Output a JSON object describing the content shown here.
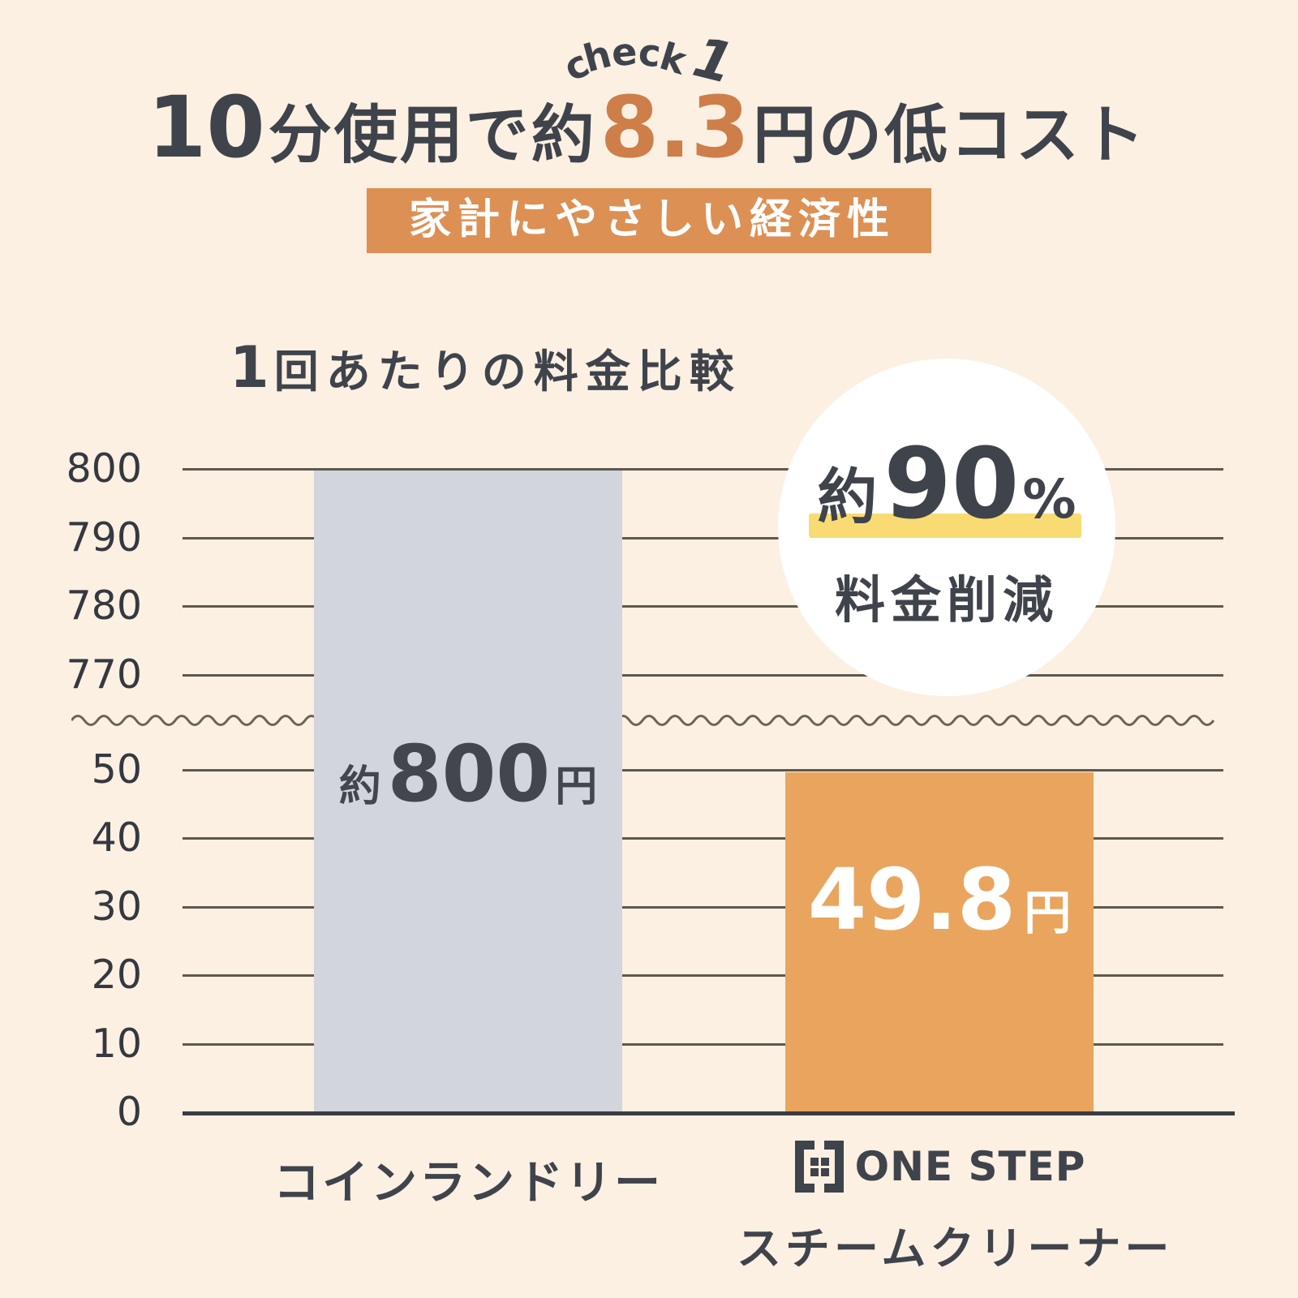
{
  "check_badge": {
    "letters": [
      "c",
      "h",
      "e",
      "c",
      "k"
    ],
    "number": "1"
  },
  "title": {
    "part1": "10",
    "part2": "分使用で約",
    "part3": "8.3",
    "part4": "円の低コスト"
  },
  "banner": {
    "label": "家計にやさしい経済性"
  },
  "chart_data": {
    "type": "bar",
    "title": "1回あたりの料金比較",
    "title_prefix": "1",
    "title_rest": "回あたりの料金比較",
    "categories": [
      "コインランドリー",
      "ONE STEP スチームクリーナー"
    ],
    "values": [
      800,
      49.8
    ],
    "unit": "円",
    "bar_value_labels": [
      {
        "prefix": "約",
        "value": "800",
        "suffix": "円"
      },
      {
        "prefix": "",
        "value": "49.8",
        "suffix": "円"
      }
    ],
    "bar_colors": [
      "#d2d5dc",
      "#e9a55e"
    ],
    "axis_break": true,
    "upper_ticks": [
      "800",
      "790",
      "780",
      "770"
    ],
    "lower_ticks": [
      "50",
      "40",
      "30",
      "20",
      "10",
      "0"
    ],
    "ylim_upper": [
      770,
      800
    ],
    "ylim_lower": [
      0,
      50
    ],
    "grid": true,
    "legend_position": "none",
    "annotation": "約90% 料金削減"
  },
  "badge_circle": {
    "prefix": "約",
    "percent": "90",
    "percent_sign": "%",
    "caption": "料金削減",
    "highlight_color": "#f8db72"
  },
  "x_labels": {
    "left": "コインランドリー",
    "right_brand": "ONE STEP",
    "right_sub": "スチームクリーナー"
  },
  "colors": {
    "background": "#fcf0e2",
    "text_dark": "#3f434b",
    "accent_orange": "#cd7e49",
    "banner_orange": "#dc9054",
    "bar_orange": "#e9a55e",
    "bar_gray": "#d2d5dc",
    "highlight_yellow": "#f8db72",
    "gridline": "#5e584f"
  }
}
